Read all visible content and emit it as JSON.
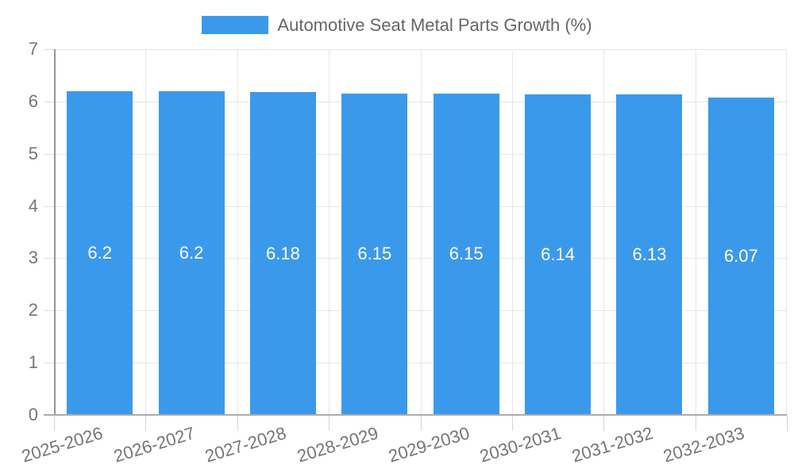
{
  "legend": {
    "label": "Automotive Seat Metal Parts Growth (%)"
  },
  "chart_data": {
    "type": "bar",
    "title": "Automotive Seat Metal Parts Growth (%)",
    "categories": [
      "2025-2026",
      "2026-2027",
      "2027-2028",
      "2028-2029",
      "2029-2030",
      "2030-2031",
      "2031-2032",
      "2032-2033"
    ],
    "values": [
      6.2,
      6.2,
      6.18,
      6.15,
      6.15,
      6.14,
      6.13,
      6.07
    ],
    "value_labels": [
      "6.2",
      "6.2",
      "6.18",
      "6.15",
      "6.15",
      "6.14",
      "6.13",
      "6.07"
    ],
    "xlabel": "",
    "ylabel": "",
    "ylim": [
      0,
      7
    ],
    "yticks": [
      0,
      1,
      2,
      3,
      4,
      5,
      6,
      7
    ],
    "grid": true,
    "legend_position": "top",
    "bar_color": "#3b99ec",
    "value_label_color": "#ffffff",
    "tick_label_color": "#757575"
  }
}
